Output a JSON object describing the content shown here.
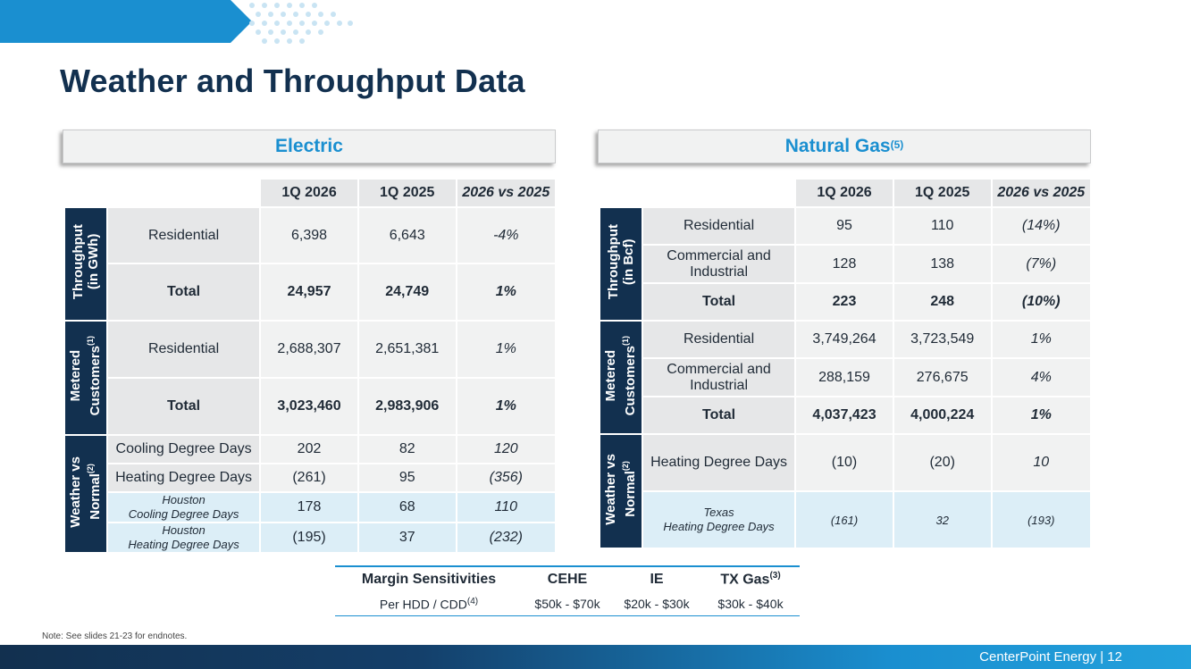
{
  "header": {
    "title": "Weather and Throughput Data"
  },
  "electric": {
    "heading": "Electric",
    "columns": [
      "1Q 2026",
      "1Q 2025",
      "2026 vs 2025"
    ],
    "throughput": {
      "side_label_1": "Throughput",
      "side_label_2": "(in GWh)",
      "rows": [
        {
          "label": "Residential",
          "v1": "6,398",
          "v2": "6,643",
          "v3": "-4%"
        },
        {
          "label": "Total",
          "v1": "24,957",
          "v2": "24,749",
          "v3": "1%"
        }
      ]
    },
    "customers": {
      "side_label_1": "Metered",
      "side_label_2": "Customers",
      "side_sup": "(1)",
      "rows": [
        {
          "label": "Residential",
          "v1": "2,688,307",
          "v2": "2,651,381",
          "v3": "1%"
        },
        {
          "label": "Total",
          "v1": "3,023,460",
          "v2": "2,983,906",
          "v3": "1%"
        }
      ]
    },
    "weather": {
      "side_label_1": "Weather vs",
      "side_label_2": "Normal",
      "side_sup": "(2)",
      "rows": [
        {
          "label": "Cooling Degree Days",
          "v1": "202",
          "v2": "82",
          "v3": "120"
        },
        {
          "label": "Heating Degree Days",
          "v1": "(261)",
          "v2": "95",
          "v3": "(356)"
        },
        {
          "label_1": "Houston",
          "label_2": "Cooling Degree Days",
          "v1": "178",
          "v2": "68",
          "v3": "110"
        },
        {
          "label_1": "Houston",
          "label_2": "Heating Degree Days",
          "v1": "(195)",
          "v2": "37",
          "v3": "(232)"
        }
      ]
    }
  },
  "gas": {
    "heading": "Natural Gas",
    "heading_sup": "(5)",
    "columns": [
      "1Q 2026",
      "1Q 2025",
      "2026 vs 2025"
    ],
    "throughput": {
      "side_label_1": "Throughput",
      "side_label_2": "(in Bcf)",
      "rows": [
        {
          "label": "Residential",
          "v1": "95",
          "v2": "110",
          "v3": "(14%)"
        },
        {
          "label_1": "Commercial and",
          "label_2": "Industrial",
          "v1": "128",
          "v2": "138",
          "v3": "(7%)"
        },
        {
          "label": "Total",
          "v1": "223",
          "v2": "248",
          "v3": "(10%)"
        }
      ]
    },
    "customers": {
      "side_label_1": "Metered",
      "side_label_2": "Customers",
      "side_sup": "(1)",
      "rows": [
        {
          "label": "Residential",
          "v1": "3,749,264",
          "v2": "3,723,549",
          "v3": "1%"
        },
        {
          "label_1": "Commercial and",
          "label_2": "Industrial",
          "v1": "288,159",
          "v2": "276,675",
          "v3": "4%"
        },
        {
          "label": "Total",
          "v1": "4,037,423",
          "v2": "4,000,224",
          "v3": "1%"
        }
      ]
    },
    "weather": {
      "side_label_1": "Weather vs",
      "side_label_2": "Normal",
      "side_sup": "(2)",
      "rows": [
        {
          "label": "Heating Degree Days",
          "v1": "(10)",
          "v2": "(20)",
          "v3": "10"
        },
        {
          "label_1": "Texas",
          "label_2": "Heating Degree Days",
          "v1": "(161)",
          "v2": "32",
          "v3": "(193)"
        }
      ]
    }
  },
  "margin_sensitivities": {
    "header": "Margin Sensitivities",
    "cols": [
      "CEHE",
      "IE",
      "TX Gas"
    ],
    "col3_sup": "(3)",
    "row_label": "Per HDD / CDD",
    "row_sup": "(4)",
    "values": [
      "$50k - $70k",
      "$20k - $30k",
      "$30k - $40k"
    ]
  },
  "note": "Note: See slides 21-23 for endnotes.",
  "footer": {
    "text": "CenterPoint Energy | 12"
  },
  "colors": {
    "navy": "#12304f",
    "accent_blue": "#1a8fd0",
    "light_blue": "#dceef7"
  }
}
